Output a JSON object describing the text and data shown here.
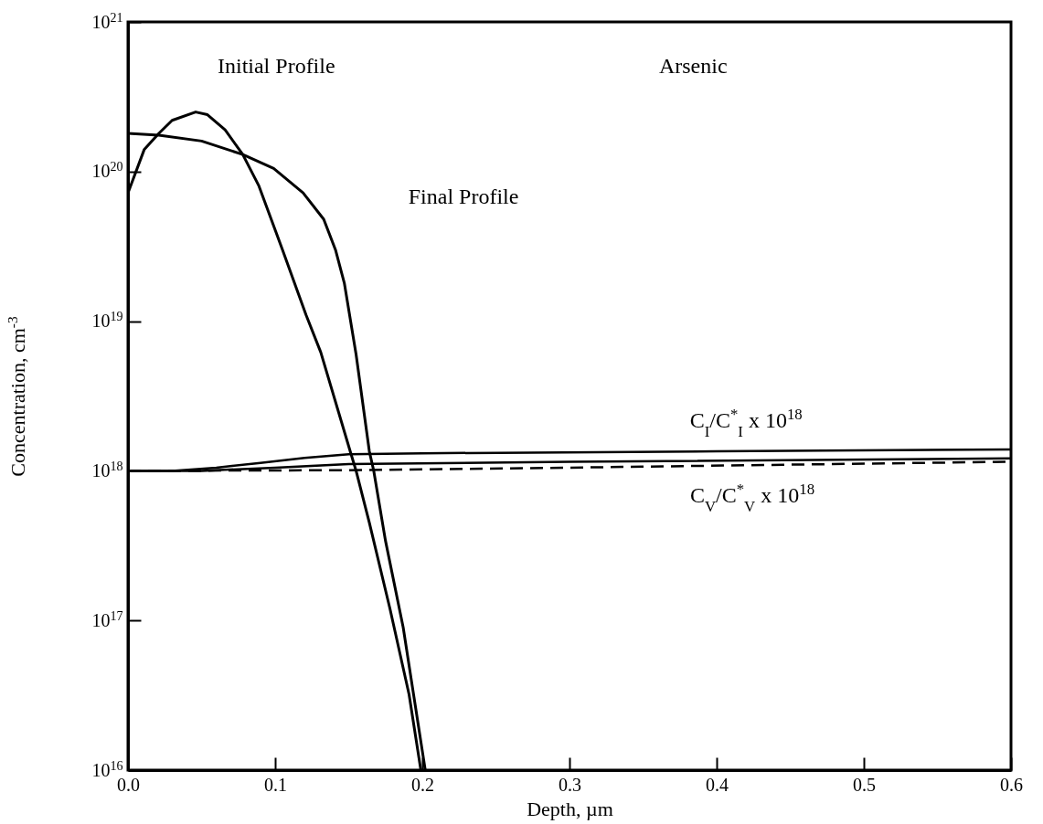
{
  "chart_data": {
    "type": "line",
    "xlabel": "Depth, µm",
    "ylabel": "Concentration, cm$^{-3}$",
    "log": "y",
    "grid": false,
    "xlim": [
      0,
      0.6
    ],
    "xticks": [
      {
        "value": 0,
        "label": "0.0"
      },
      0.1,
      0.2,
      0.3,
      0.4,
      0.5,
      0.6
    ],
    "ylim": [
      1e+16,
      1e+21
    ],
    "yticks": [
      {
        "value": 1e+16,
        "label": "10$^{16}$"
      },
      {
        "value": 1e+17,
        "label": "10$^{17}$"
      },
      {
        "value": 1e+18,
        "label": "10$^{18}$"
      },
      {
        "value": 1e+19,
        "label": "10$^{19}$"
      },
      {
        "value": 1e+20,
        "label": "10$^{20}$"
      },
      {
        "value": 1e+21,
        "label": "10$^{21}$"
      }
    ],
    "series": [
      {
        "color": "#000000",
        "x": [
          0,
          0.011,
          0.021,
          0.03,
          0.046,
          0.054,
          0.066,
          0.078,
          0.089,
          0.105,
          0.121,
          0.131,
          0.151,
          0.155,
          0.164,
          0.178,
          0.191,
          0.199
        ],
        "values": [
          7.2e+19,
          1.4e+20,
          1.8e+20,
          2.2e+20,
          2.5e+20,
          2.4e+20,
          1.9e+20,
          1.3e+20,
          8e+19,
          3e+19,
          1.1e+19,
          6.2e+18,
          1.35e+18,
          1e+18,
          4.5e+17,
          1.2e+17,
          3.2e+16,
          1e+16
        ]
      },
      {
        "color": "#000000",
        "x": [
          0,
          0.021,
          0.05,
          0.078,
          0.099,
          0.119,
          0.133,
          0.141,
          0.147,
          0.155,
          0.164,
          0.167,
          0.175,
          0.187,
          0.202
        ],
        "values": [
          1.8e+20,
          1.75e+20,
          1.6e+20,
          1.3e+20,
          1.05e+20,
          7.2e+19,
          4.8e+19,
          3e+19,
          1.8e+19,
          6e+18,
          1.35e+18,
          1e+18,
          3.4e+17,
          9e+16,
          1e+16
        ]
      },
      {
        "color": "#000000",
        "x": [
          0,
          0.03,
          0.06,
          0.09,
          0.12,
          0.15,
          0.2,
          0.4,
          0.6
        ],
        "values": [
          1e+18,
          1e+18,
          1.05e+18,
          1.13e+18,
          1.22e+18,
          1.29e+18,
          1.31e+18,
          1.35e+18,
          1.39e+18
        ]
      },
      {
        "color": "#000000",
        "x": [
          0,
          0.05,
          0.1,
          0.15,
          0.3,
          0.6
        ],
        "values": [
          1e+18,
          1e+18,
          1.05e+18,
          1.11e+18,
          1.15e+18,
          1.21e+18
        ]
      },
      {
        "color": "#000000",
        "line_style": "dashed",
        "x": [
          0,
          0.15,
          0.3,
          0.45,
          0.6
        ],
        "values": [
          1e+18,
          1.01e+18,
          1.05e+18,
          1.1e+18,
          1.15e+18
        ]
      }
    ],
    "annotations": [
      "Initial Profile",
      "Final Profile",
      "Arsenic",
      "C$_{I}$/C$^{*}$$_{I}$ x 10$^{18}$",
      "C$_{V}$/C$^{*}$$_{V}$ x 10$^{18}$"
    ]
  }
}
